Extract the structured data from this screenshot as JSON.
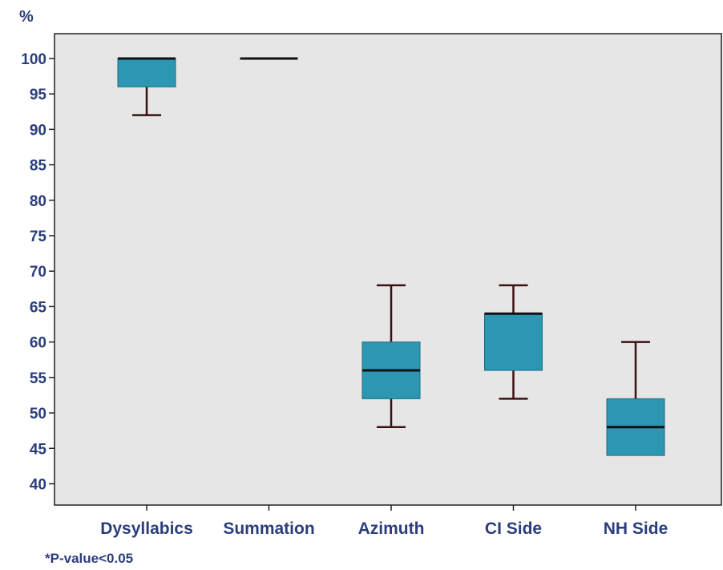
{
  "chart_data": {
    "type": "boxplot",
    "y_unit": "%",
    "ylim": [
      37,
      103.5
    ],
    "yticks": [
      40,
      45,
      50,
      55,
      60,
      65,
      70,
      75,
      80,
      85,
      90,
      95,
      100
    ],
    "categories": [
      "Dysyllabics",
      "Summation",
      "Azimuth",
      "CI Side",
      "NH Side"
    ],
    "boxes": [
      {
        "category": "Dysyllabics",
        "min": 92,
        "q1": 96,
        "median": 100,
        "q3": 100,
        "max": 100
      },
      {
        "category": "Summation",
        "min": 100,
        "q1": 100,
        "median": 100,
        "q3": 100,
        "max": 100
      },
      {
        "category": "Azimuth",
        "min": 48,
        "q1": 52,
        "median": 56,
        "q3": 60,
        "max": 68
      },
      {
        "category": "CI Side",
        "min": 52,
        "q1": 56,
        "median": 64,
        "q3": 64,
        "max": 68
      },
      {
        "category": "NH Side",
        "min": 44,
        "q1": 44,
        "median": 48,
        "q3": 52,
        "max": 60
      }
    ],
    "footnote": "*P-value<0.05",
    "colors": {
      "box_fill": "#2b97b2",
      "median_line": "#111111",
      "whisker": "#3a1010",
      "plot_background": "#e6e6e6",
      "label_text": "#2b3e7c"
    }
  }
}
